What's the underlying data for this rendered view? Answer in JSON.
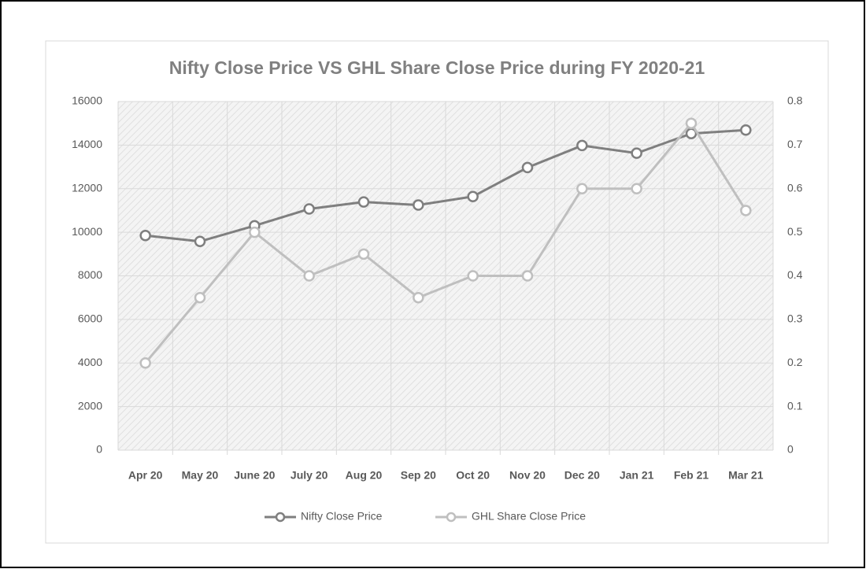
{
  "chart_data": {
    "type": "line",
    "title": "Nifty Close Price VS GHL Share Close Price during FY 2020-21",
    "categories": [
      "Apr 20",
      "May 20",
      "June 20",
      "July 20",
      "Aug 20",
      "Sep 20",
      "Oct 20",
      "Nov 20",
      "Dec 20",
      "Jan 21",
      "Feb 21",
      "Mar 21"
    ],
    "series": [
      {
        "name": "Nifty Close Price",
        "color": "#7f7f7f",
        "values": [
          9850,
          9580,
          10300,
          11070,
          11390,
          11250,
          11640,
          12970,
          13980,
          13630,
          14530,
          14690
        ]
      },
      {
        "name": "GHL Share Close Price",
        "color": "#bfbfbf",
        "axis": "y2",
        "values": [
          0.2,
          0.35,
          0.5,
          0.4,
          0.45,
          0.35,
          0.4,
          0.4,
          0.6,
          0.6,
          0.75,
          0.55
        ]
      }
    ],
    "ylim": [
      0,
      16000
    ],
    "yticks": [
      0,
      2000,
      4000,
      6000,
      8000,
      10000,
      12000,
      14000,
      16000
    ],
    "y2lim": [
      0,
      0.8
    ],
    "y2ticks": [
      0,
      0.1,
      0.2,
      0.3,
      0.4,
      0.5,
      0.6,
      0.7,
      0.8
    ],
    "grid": true,
    "legend": "bottom"
  }
}
